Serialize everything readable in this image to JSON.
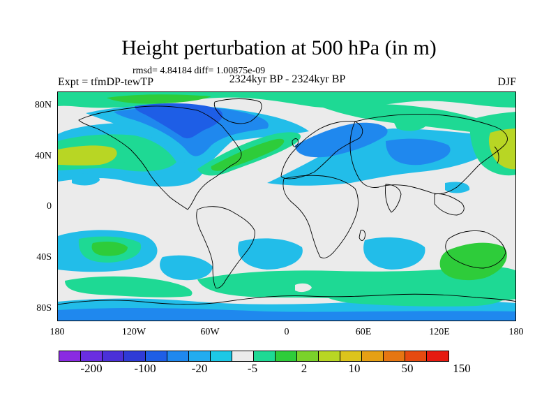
{
  "title": "Height perturbation at 500 hPa (in m)",
  "stats": "rmsd= 4.84184  diff= 1.00875e-09",
  "left_label": "Expt = tfmDP-tewTP",
  "center_label": "2324kyr BP - 2324kyr BP",
  "right_label": "DJF",
  "y_ticks": [
    "80N",
    "40N",
    "0",
    "40S",
    "80S"
  ],
  "x_ticks": [
    "180",
    "120W",
    "60W",
    "0",
    "60E",
    "120E",
    "180"
  ],
  "colorbar": {
    "colors": [
      "#8a2be2",
      "#6a2ee0",
      "#4b30d8",
      "#2f3bd6",
      "#1e5ee6",
      "#1f88ee",
      "#22acef",
      "#1dc8e6",
      "#ebebeb",
      "#1ed994",
      "#2ecc3a",
      "#7ad22a",
      "#b8d624",
      "#dcc41c",
      "#e6a014",
      "#e67612",
      "#e64a10",
      "#e61a10"
    ],
    "labels": [
      "-200",
      "-100",
      "-20",
      "-5",
      "2",
      "10",
      "50",
      "150"
    ]
  },
  "map": {
    "background": "#ebebeb",
    "cyan": "#22bde9",
    "blue_mid": "#1f88ee",
    "blue_dark": "#1e5ee6",
    "teal": "#1ed994",
    "green": "#2ecc3a",
    "lime": "#b8d624",
    "coast": "#000000"
  }
}
